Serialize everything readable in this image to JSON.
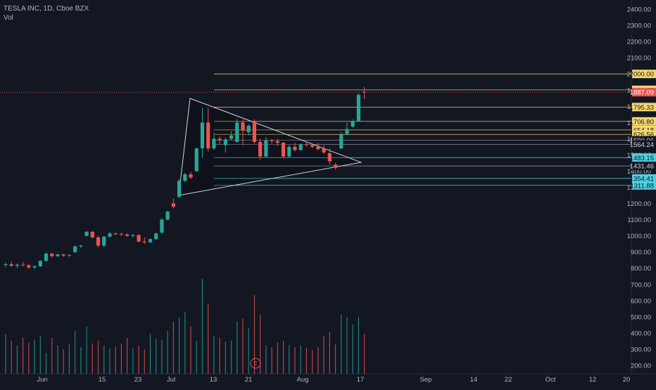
{
  "header": {
    "symbol_line": "TESLA INC, 1D, Cboe BZX",
    "volume_label": "Vol"
  },
  "colors": {
    "background": "#131722",
    "up": "#26a69a",
    "down": "#ef5350",
    "level_line": "#f5d76e",
    "level_line_cyan": "#4dd0e1",
    "price_line": "#ef5350",
    "axis_text": "#b2b5be",
    "triangle": "#d1d4dc"
  },
  "earnings_marker": "E",
  "chart_data": {
    "type": "candlestick",
    "ylim": [
      180,
      2450
    ],
    "y_ticks": [
      "2400.00",
      "2300.00",
      "2200.00",
      "2100.00",
      "2000.00",
      "1900.00",
      "1800.00",
      "1700.00",
      "1600.00",
      "1500.00",
      "1400.00",
      "1300.00",
      "1200.00",
      "1100.00",
      "1000.00",
      "900.00",
      "800.00",
      "700.00",
      "600.00",
      "500.00",
      "400.00",
      "300.00",
      "200.00"
    ],
    "x_ticks": [
      "Jun",
      "15",
      "23",
      "Jul",
      "13",
      "21",
      "Aug",
      "17",
      "Sep",
      "14",
      "22",
      "Oct",
      "12",
      "20"
    ],
    "current_price": "1887.09",
    "level_labels": [
      {
        "label": "2000.00",
        "value": 2000,
        "color": "yellow"
      },
      {
        "label": "1901.65",
        "value": 1901.65,
        "color": "yellow"
      },
      {
        "label": "1795.33",
        "value": 1795.33,
        "color": "yellow"
      },
      {
        "label": "1706.80",
        "value": 1706.8,
        "color": "yellow"
      },
      {
        "label": "1654.18",
        "value": 1654.18,
        "color": "yellow"
      },
      {
        "label": "1626.56",
        "value": 1626.56,
        "color": "yellow"
      },
      {
        "label": "1590.06",
        "value": 1590.06,
        "color": "none"
      },
      {
        "label": "1564.24",
        "value": 1564.24,
        "color": "none"
      },
      {
        "label": "1483.15",
        "value": 1483.15,
        "color": "cyan"
      },
      {
        "label": "1431.46",
        "value": 1431.46,
        "color": "none"
      },
      {
        "label": "1354.41",
        "value": 1354.41,
        "color": "cyan"
      },
      {
        "label": "1311.88",
        "value": 1311.88,
        "color": "cyan"
      }
    ],
    "candles": [
      {
        "o": 820,
        "h": 835,
        "l": 805,
        "c": 825
      },
      {
        "o": 825,
        "h": 840,
        "l": 810,
        "c": 815
      },
      {
        "o": 815,
        "h": 830,
        "l": 800,
        "c": 822
      },
      {
        "o": 822,
        "h": 838,
        "l": 812,
        "c": 818
      },
      {
        "o": 818,
        "h": 828,
        "l": 795,
        "c": 805
      },
      {
        "o": 805,
        "h": 820,
        "l": 792,
        "c": 812
      },
      {
        "o": 812,
        "h": 850,
        "l": 808,
        "c": 845
      },
      {
        "o": 845,
        "h": 900,
        "l": 840,
        "c": 890
      },
      {
        "o": 890,
        "h": 895,
        "l": 865,
        "c": 875
      },
      {
        "o": 875,
        "h": 890,
        "l": 870,
        "c": 885
      },
      {
        "o": 885,
        "h": 890,
        "l": 870,
        "c": 878
      },
      {
        "o": 878,
        "h": 885,
        "l": 870,
        "c": 882
      },
      {
        "o": 900,
        "h": 940,
        "l": 895,
        "c": 935
      },
      {
        "o": 935,
        "h": 945,
        "l": 925,
        "c": 940
      },
      {
        "o": 1000,
        "h": 1030,
        "l": 995,
        "c": 1025
      },
      {
        "o": 1025,
        "h": 1030,
        "l": 985,
        "c": 990
      },
      {
        "o": 990,
        "h": 1000,
        "l": 930,
        "c": 940
      },
      {
        "o": 940,
        "h": 1000,
        "l": 930,
        "c": 995
      },
      {
        "o": 995,
        "h": 1025,
        "l": 990,
        "c": 1015
      },
      {
        "o": 1015,
        "h": 1020,
        "l": 1005,
        "c": 1010
      },
      {
        "o": 1010,
        "h": 1020,
        "l": 1000,
        "c": 1008
      },
      {
        "o": 1008,
        "h": 1015,
        "l": 995,
        "c": 1000
      },
      {
        "o": 1000,
        "h": 1010,
        "l": 990,
        "c": 1005
      },
      {
        "o": 1005,
        "h": 1010,
        "l": 960,
        "c": 965
      },
      {
        "o": 965,
        "h": 990,
        "l": 950,
        "c": 960
      },
      {
        "o": 960,
        "h": 985,
        "l": 955,
        "c": 980
      },
      {
        "o": 980,
        "h": 1020,
        "l": 975,
        "c": 1015
      },
      {
        "o": 1020,
        "h": 1110,
        "l": 1010,
        "c": 1100
      },
      {
        "o": 1100,
        "h": 1155,
        "l": 1095,
        "c": 1150
      },
      {
        "o": 1200,
        "h": 1230,
        "l": 1170,
        "c": 1180
      },
      {
        "o": 1240,
        "h": 1350,
        "l": 1235,
        "c": 1340
      },
      {
        "o": 1340,
        "h": 1390,
        "l": 1330,
        "c": 1380
      },
      {
        "o": 1380,
        "h": 1395,
        "l": 1350,
        "c": 1360
      },
      {
        "o": 1400,
        "h": 1545,
        "l": 1395,
        "c": 1540
      },
      {
        "o": 1540,
        "h": 1790,
        "l": 1480,
        "c": 1700
      },
      {
        "o": 1700,
        "h": 1790,
        "l": 1520,
        "c": 1540
      },
      {
        "o": 1540,
        "h": 1640,
        "l": 1530,
        "c": 1600
      },
      {
        "o": 1600,
        "h": 1615,
        "l": 1565,
        "c": 1590
      },
      {
        "o": 1560,
        "h": 1605,
        "l": 1515,
        "c": 1595
      },
      {
        "o": 1600,
        "h": 1645,
        "l": 1590,
        "c": 1620
      },
      {
        "o": 1580,
        "h": 1720,
        "l": 1575,
        "c": 1700
      },
      {
        "o": 1700,
        "h": 1720,
        "l": 1560,
        "c": 1650
      },
      {
        "o": 1640,
        "h": 1690,
        "l": 1620,
        "c": 1680
      },
      {
        "o": 1705,
        "h": 1720,
        "l": 1570,
        "c": 1580
      },
      {
        "o": 1580,
        "h": 1600,
        "l": 1470,
        "c": 1490
      },
      {
        "o": 1490,
        "h": 1610,
        "l": 1485,
        "c": 1590
      },
      {
        "o": 1590,
        "h": 1600,
        "l": 1570,
        "c": 1585
      },
      {
        "o": 1585,
        "h": 1600,
        "l": 1555,
        "c": 1575
      },
      {
        "o": 1575,
        "h": 1580,
        "l": 1480,
        "c": 1490
      },
      {
        "o": 1490,
        "h": 1560,
        "l": 1485,
        "c": 1550
      },
      {
        "o": 1550,
        "h": 1575,
        "l": 1520,
        "c": 1530
      },
      {
        "o": 1530,
        "h": 1570,
        "l": 1525,
        "c": 1565
      },
      {
        "o": 1565,
        "h": 1580,
        "l": 1550,
        "c": 1560
      },
      {
        "o": 1560,
        "h": 1565,
        "l": 1540,
        "c": 1550
      },
      {
        "o": 1550,
        "h": 1575,
        "l": 1530,
        "c": 1535
      },
      {
        "o": 1540,
        "h": 1560,
        "l": 1505,
        "c": 1515
      },
      {
        "o": 1510,
        "h": 1540,
        "l": 1440,
        "c": 1460
      },
      {
        "o": 1440,
        "h": 1450,
        "l": 1410,
        "c": 1420
      },
      {
        "o": 1540,
        "h": 1640,
        "l": 1535,
        "c": 1625
      },
      {
        "o": 1630,
        "h": 1700,
        "l": 1620,
        "c": 1660
      },
      {
        "o": 1675,
        "h": 1720,
        "l": 1665,
        "c": 1710
      },
      {
        "o": 1710,
        "h": 1880,
        "l": 1705,
        "c": 1870
      },
      {
        "o": 1890,
        "h": 1920,
        "l": 1845,
        "c": 1887
      }
    ],
    "volumes": [
      0.42,
      0.35,
      0.3,
      0.38,
      0.33,
      0.36,
      0.4,
      0.22,
      0.38,
      0.3,
      0.26,
      0.32,
      0.45,
      0.28,
      0.5,
      0.32,
      0.35,
      0.3,
      0.27,
      0.29,
      0.32,
      0.38,
      0.27,
      0.3,
      0.26,
      0.42,
      0.37,
      0.36,
      0.45,
      0.55,
      0.59,
      0.65,
      0.5,
      0.35,
      1.0,
      0.74,
      0.4,
      0.38,
      0.34,
      0.35,
      0.55,
      0.58,
      0.48,
      0.83,
      0.62,
      0.3,
      0.28,
      0.33,
      0.35,
      0.3,
      0.28,
      0.3,
      0.27,
      0.25,
      0.28,
      0.4,
      0.44,
      0.31,
      0.62,
      0.6,
      0.52,
      0.6,
      0.42
    ]
  }
}
